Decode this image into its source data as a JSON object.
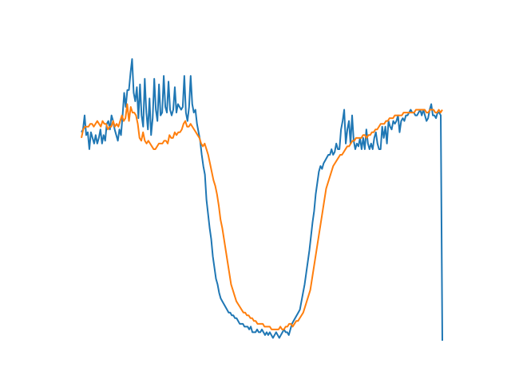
{
  "chart_data": {
    "type": "line",
    "title": "",
    "xlabel": "",
    "ylabel": "",
    "axes_visible": false,
    "grid": false,
    "legend": "none",
    "xlim": [
      0,
      99
    ],
    "ylim": [
      0,
      100
    ],
    "series": [
      {
        "color": "#1f77b4",
        "values": [
          74,
          75,
          80,
          73,
          74,
          68,
          74,
          72,
          70,
          73,
          70,
          72,
          75,
          70,
          73,
          71,
          77,
          78,
          75,
          80,
          78,
          75,
          73,
          71,
          75,
          73,
          80,
          88,
          83,
          89,
          89,
          95,
          100,
          88,
          85,
          90,
          79,
          91,
          80,
          76,
          93,
          81,
          75,
          86,
          73,
          79,
          93,
          82,
          78,
          91,
          80,
          81,
          94,
          83,
          81,
          92,
          82,
          80,
          82,
          90,
          81,
          84,
          83,
          82,
          83,
          94,
          81,
          78,
          83,
          94,
          84,
          81,
          82,
          77,
          74,
          71,
          66,
          62,
          59,
          50,
          45,
          40,
          36,
          30,
          26,
          22,
          20,
          17,
          15,
          14,
          13,
          12,
          11,
          10,
          10,
          9,
          9,
          8,
          8,
          7,
          6,
          6,
          6,
          5,
          5,
          5,
          4,
          5,
          3,
          3,
          3,
          4,
          3,
          3,
          4,
          3,
          2,
          3,
          2,
          3,
          2,
          1,
          2,
          3,
          2,
          1,
          2,
          3,
          4,
          3,
          3,
          2,
          4,
          6,
          7,
          8,
          9,
          10,
          11,
          14,
          17,
          20,
          24,
          28,
          32,
          37,
          42,
          46,
          52,
          56,
          60,
          62,
          61,
          63,
          64,
          65,
          66,
          66,
          68,
          66,
          67,
          70,
          68,
          68,
          75,
          78,
          82,
          70,
          75,
          78,
          70,
          80,
          71,
          68,
          70,
          69,
          72,
          68,
          72,
          68,
          75,
          70,
          68,
          70,
          68,
          72,
          74,
          70,
          68,
          68,
          76,
          72,
          76,
          70,
          78,
          76,
          75,
          78,
          77,
          78,
          80,
          74,
          78,
          79,
          78,
          80,
          80,
          81,
          82,
          81,
          81,
          80,
          80,
          81,
          82,
          80,
          82,
          80,
          78,
          79,
          82,
          84,
          80,
          80,
          79,
          81,
          81,
          80,
          0
        ],
        "note_values_pct_of_range": true
      },
      {
        "color": "#ff7f0e",
        "values": [
          72,
          75,
          76,
          76,
          76,
          77,
          77,
          76,
          77,
          78,
          77,
          76,
          78,
          77,
          77,
          75,
          76,
          76,
          78,
          76,
          77,
          76,
          78,
          80,
          78,
          79,
          84,
          78,
          83,
          81,
          81,
          80,
          77,
          72,
          71,
          74,
          71,
          70,
          71,
          70,
          69,
          68,
          68,
          69,
          70,
          70,
          70,
          71,
          71,
          70,
          73,
          72,
          72,
          74,
          73,
          74,
          74,
          75,
          77,
          78,
          76,
          76,
          77,
          76,
          75,
          74,
          73,
          72,
          70,
          69,
          70,
          68,
          66,
          63,
          60,
          57,
          55,
          52,
          48,
          43,
          40,
          36,
          32,
          28,
          24,
          20,
          18,
          16,
          14,
          13,
          12,
          11,
          10,
          10,
          9,
          9,
          8,
          8,
          7,
          7,
          6,
          6,
          6,
          6,
          5,
          5,
          5,
          5,
          4,
          4,
          4,
          4,
          4,
          5,
          4,
          4,
          5,
          5,
          6,
          6,
          5,
          6,
          7,
          7,
          8,
          9,
          10,
          12,
          14,
          16,
          18,
          22,
          26,
          30,
          34,
          38,
          42,
          46,
          50,
          54,
          56,
          58,
          60,
          62,
          63,
          64,
          65,
          66,
          66,
          67,
          68,
          69,
          69,
          70,
          71,
          71,
          72,
          72,
          72,
          72,
          73,
          73,
          72,
          73,
          73,
          74,
          74,
          75,
          75,
          76,
          77,
          77,
          77,
          78,
          78,
          79,
          79,
          79,
          80,
          80,
          80,
          80,
          80,
          81,
          81,
          81,
          81,
          81,
          81,
          81,
          82,
          82,
          82,
          82,
          82,
          82,
          81,
          81,
          82,
          82,
          82,
          81,
          81,
          82,
          81,
          82
        ],
        "note_values_pct_of_range": true
      }
    ]
  }
}
